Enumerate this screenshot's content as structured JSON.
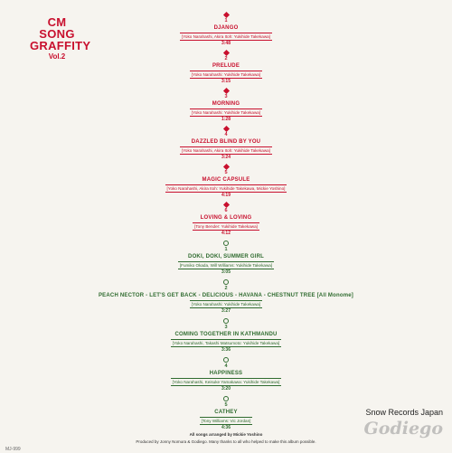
{
  "title": {
    "line1": "CM",
    "line2": "SONG",
    "line3": "GRAFFITY",
    "vol": "Vol.2"
  },
  "side_a": [
    {
      "num": "1",
      "name": "DJANGO",
      "credits": "[Yoko Narahashi, Akira Itoh: Yukihide Takekawa]",
      "time": "3:48"
    },
    {
      "num": "2",
      "name": "PRELUDE",
      "credits": "[Yoko Narahashi: Yukihide Takekawa]",
      "time": "3:15"
    },
    {
      "num": "3",
      "name": "MORNING",
      "credits": "[Yoko Narahashi: Yukihide Takekawa]",
      "time": "1:28"
    },
    {
      "num": "4",
      "name": "DAZZLED BLIND BY YOU",
      "credits": "[Yoko Narahashi, Akira Itoh: Yukihide Takekawa]",
      "time": "3:24"
    },
    {
      "num": "5",
      "name": "MAGIC CAPSULE",
      "credits": "[Yoko Narahashi, Akira Itoh: Yukihide Takekawa, Mickie Yoshino]",
      "time": "4:19"
    },
    {
      "num": "6",
      "name": "LOVING & LOVING",
      "credits": "[Tony Bender: Yukihide Takekawa]",
      "time": "4:12"
    }
  ],
  "side_b": [
    {
      "num": "1",
      "name": "DOKI, DOKI, SUMMER GIRL",
      "credits": "[Fumiko Okada, Will Williams: Yukihide Takekawa]",
      "time": "3:05"
    },
    {
      "num": "2",
      "name": "PEACH NECTOR - LET'S GET BACK - DELICIOUS - HAVANA - CHESTNUT TREE [All Monome]",
      "credits": "[Yoko Narahashi: Yukihide Takekawa]",
      "time": "3:27"
    },
    {
      "num": "3",
      "name": "COMING TOGETHER IN KATHMANDU",
      "credits": "[Yoko Narahashi, Takashi Matsumoto: Yukihide Takekawa]",
      "time": "3:36"
    },
    {
      "num": "4",
      "name": "HAPPINESS",
      "credits": "[Yoko Narahashi, Keisuke Yamakawa: Yukihide Takekawa]",
      "time": "3:20"
    },
    {
      "num": "5",
      "name": "CATHEY",
      "credits": "[Tony Williams: Vic Jordan]",
      "time": "4:36"
    }
  ],
  "footer": {
    "arranged": "All songs arranged by Mickie Yoshino",
    "produced": "Produced by Jonny Nomura & Godiego. Many thanks to all who helped to make this album possible."
  },
  "catalog": "MJ-999",
  "watermark": {
    "text": "Snow Records Japan",
    "logo": "Godiego"
  },
  "colors": {
    "side_a": "#c8102e",
    "side_b": "#2f6b2f",
    "background": "#f6f4ef"
  }
}
